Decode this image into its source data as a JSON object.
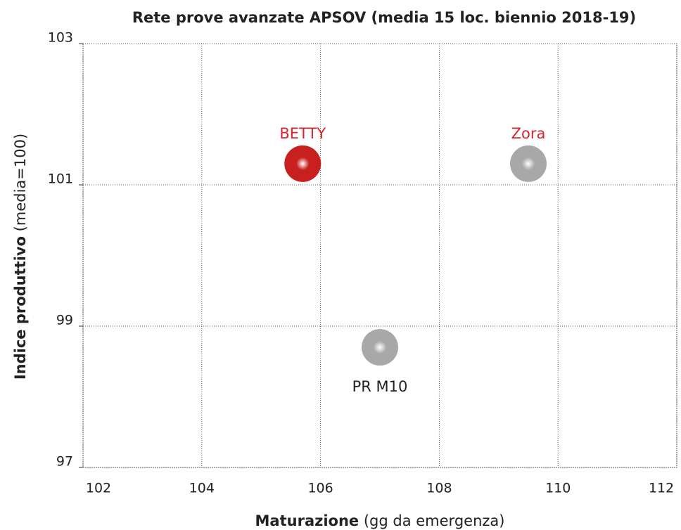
{
  "chart_data": {
    "type": "scatter",
    "title": "Rete prove avanzate APSOV (media 15 loc. biennio 2018-19)",
    "x_label_bold": "Maturazione",
    "x_label": "(gg da emergenza)",
    "y_label_bold": "Indice produttivo",
    "y_label": "(media=100)",
    "xlim": [
      102,
      112
    ],
    "xticks": [
      102,
      104,
      106,
      108,
      110,
      112
    ],
    "ylim": [
      97,
      103
    ],
    "yticks": [
      97,
      99,
      101,
      103
    ],
    "grid": true,
    "series": [
      {
        "name": "BETTY",
        "color": "#c8201f",
        "label_color": "#d8252d",
        "label_position": "above",
        "x": [
          105.7
        ],
        "values": [
          101.3
        ]
      },
      {
        "name": "Zora",
        "color": "#a8a8a8",
        "label_color": "#d8252d",
        "label_position": "above",
        "x": [
          109.5
        ],
        "values": [
          101.3
        ]
      },
      {
        "name": "PR M10",
        "color": "#a8a8a8",
        "label_color": "#222222",
        "label_position": "below",
        "x": [
          107
        ],
        "values": [
          98.7
        ]
      }
    ]
  }
}
